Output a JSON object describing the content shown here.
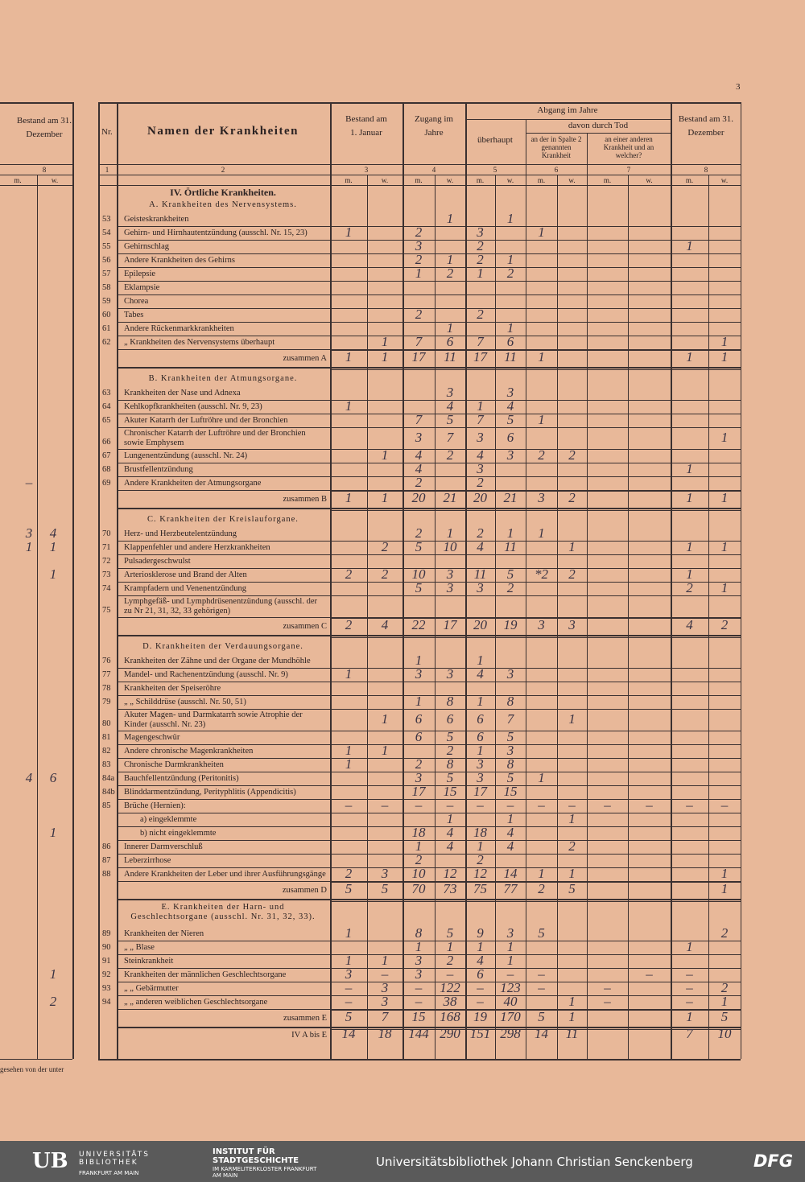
{
  "page_number": "3",
  "left_fragment": {
    "header": "Bestand am 31. Dezember",
    "col_number": "8",
    "footnote": "gesehen von der unter"
  },
  "header": {
    "nr": "Nr.",
    "name": "Namen der Krankheiten",
    "bestand_jan": "Bestand am 1. Januar",
    "zugang": "Zugang im Jahre",
    "abgang": "Abgang im Jahre",
    "ueberhaupt": "überhaupt",
    "davon": "davon durch Tod",
    "col6": "an der in Spalte 2 genannten Krankheit",
    "col7": "an einer anderen Krankheit und an welcher?",
    "bestand_dez": "Bestand am 31. Dezember",
    "col_numbers": [
      "1",
      "2",
      "3",
      "4",
      "5",
      "6",
      "7",
      "8"
    ],
    "sex": [
      "m.",
      "w."
    ]
  },
  "part_title": "IV. Örtliche Krankheiten.",
  "sections": [
    {
      "heading": "A. Krankheiten des Nervensystems.",
      "rows": [
        {
          "nr": "53",
          "name": "Geisteskrankheiten",
          "cells": [
            null,
            null,
            null,
            1,
            null,
            1,
            null,
            null,
            null,
            null,
            null,
            null
          ]
        },
        {
          "nr": "54",
          "name": "Gehirn- und Hirnhautentzündung (ausschl. Nr. 15, 23)",
          "cells": [
            1,
            null,
            2,
            null,
            3,
            null,
            1,
            null,
            null,
            null,
            null,
            null
          ]
        },
        {
          "nr": "55",
          "name": "Gehirnschlag",
          "cells": [
            null,
            null,
            3,
            null,
            2,
            null,
            null,
            null,
            null,
            null,
            1,
            null
          ]
        },
        {
          "nr": "56",
          "name": "Andere Krankheiten des Gehirns",
          "cells": [
            null,
            null,
            2,
            1,
            2,
            1,
            null,
            null,
            null,
            null,
            null,
            null
          ]
        },
        {
          "nr": "57",
          "name": "Epilepsie",
          "cells": [
            null,
            null,
            1,
            2,
            1,
            2,
            null,
            null,
            null,
            null,
            null,
            null
          ]
        },
        {
          "nr": "58",
          "name": "Eklampsie",
          "cells": [
            null,
            null,
            null,
            null,
            null,
            null,
            null,
            null,
            null,
            null,
            null,
            null
          ]
        },
        {
          "nr": "59",
          "name": "Chorea",
          "cells": [
            null,
            null,
            null,
            null,
            null,
            null,
            null,
            null,
            null,
            null,
            null,
            null
          ]
        },
        {
          "nr": "60",
          "name": "Tabes",
          "cells": [
            null,
            null,
            2,
            null,
            2,
            null,
            null,
            null,
            null,
            null,
            null,
            null
          ]
        },
        {
          "nr": "61",
          "name": "Andere Rückenmarkkrankheiten",
          "cells": [
            null,
            null,
            null,
            1,
            null,
            1,
            null,
            null,
            null,
            null,
            null,
            null
          ]
        },
        {
          "nr": "62",
          "name": "„ Krankheiten des Nervensystems überhaupt",
          "cells": [
            null,
            1,
            7,
            6,
            7,
            6,
            null,
            null,
            null,
            null,
            null,
            1
          ]
        }
      ],
      "total": {
        "label": "zusammen A",
        "cells": [
          1,
          1,
          17,
          11,
          17,
          11,
          1,
          null,
          null,
          null,
          1,
          1
        ]
      }
    },
    {
      "heading": "B. Krankheiten der Atmungsorgane.",
      "rows": [
        {
          "nr": "63",
          "name": "Krankheiten der Nase und Adnexa",
          "cells": [
            null,
            null,
            null,
            3,
            null,
            3,
            null,
            null,
            null,
            null,
            null,
            null
          ]
        },
        {
          "nr": "64",
          "name": "Kehlkopfkrankheiten (ausschl. Nr. 9, 23)",
          "cells": [
            1,
            null,
            null,
            4,
            1,
            4,
            null,
            null,
            null,
            null,
            null,
            null
          ]
        },
        {
          "nr": "65",
          "name": "Akuter Katarrh der Luftröhre und der Bronchien",
          "cells": [
            null,
            null,
            7,
            5,
            7,
            5,
            1,
            null,
            null,
            null,
            null,
            null
          ]
        },
        {
          "nr": "66",
          "name": "Chronischer Katarrh der Luftröhre und der Bronchien sowie Emphysem",
          "cells": [
            null,
            null,
            3,
            7,
            3,
            6,
            null,
            null,
            null,
            null,
            null,
            1
          ]
        },
        {
          "nr": "67",
          "name": "Lungenentzündung (ausschl. Nr. 24)",
          "cells": [
            null,
            1,
            4,
            2,
            4,
            3,
            2,
            2,
            null,
            null,
            null,
            null
          ]
        },
        {
          "nr": "68",
          "name": "Brustfellentzündung",
          "cells": [
            null,
            null,
            4,
            null,
            3,
            null,
            null,
            null,
            null,
            null,
            1,
            null
          ]
        },
        {
          "nr": "69",
          "name": "Andere Krankheiten der Atmungsorgane",
          "cells": [
            null,
            null,
            2,
            null,
            2,
            null,
            null,
            null,
            null,
            null,
            null,
            null
          ],
          "prev": [
            "–",
            null
          ]
        }
      ],
      "total": {
        "label": "zusammen B",
        "cells": [
          1,
          1,
          20,
          21,
          20,
          21,
          3,
          2,
          null,
          null,
          1,
          1
        ]
      }
    },
    {
      "heading": "C. Krankheiten der Kreislauforgane.",
      "rows": [
        {
          "nr": "70",
          "name": "Herz- und Herzbeutelentzündung",
          "cells": [
            null,
            null,
            2,
            1,
            2,
            1,
            1,
            null,
            null,
            null,
            null,
            null
          ],
          "prev": [
            3,
            4
          ]
        },
        {
          "nr": "71",
          "name": "Klappenfehler und andere Herzkrankheiten",
          "cells": [
            null,
            2,
            5,
            10,
            4,
            11,
            null,
            1,
            null,
            null,
            1,
            1
          ],
          "prev": [
            1,
            1
          ]
        },
        {
          "nr": "72",
          "name": "Pulsadergeschwulst",
          "cells": [
            null,
            null,
            null,
            null,
            null,
            null,
            null,
            null,
            null,
            null,
            null,
            null
          ]
        },
        {
          "nr": "73",
          "name": "Arteriosklerose und Brand der Alten",
          "cells": [
            2,
            2,
            10,
            3,
            11,
            5,
            "*2",
            2,
            null,
            null,
            1,
            null
          ],
          "prev": [
            null,
            1
          ]
        },
        {
          "nr": "74",
          "name": "Krampfadern und Venenentzündung",
          "cells": [
            null,
            null,
            5,
            3,
            3,
            2,
            null,
            null,
            null,
            null,
            2,
            1
          ]
        },
        {
          "nr": "75",
          "name": "Lymphgefäß- und Lymphdrüsenentzündung (ausschl. der zu Nr 21, 31, 32, 33 gehörigen)",
          "cells": [
            null,
            null,
            null,
            null,
            null,
            null,
            null,
            null,
            null,
            null,
            null,
            null
          ]
        }
      ],
      "total": {
        "label": "zusammen C",
        "cells": [
          2,
          4,
          22,
          17,
          20,
          19,
          3,
          3,
          null,
          null,
          4,
          2
        ]
      }
    },
    {
      "heading": "D. Krankheiten der Verdauungsorgane.",
      "rows": [
        {
          "nr": "76",
          "name": "Krankheiten der Zähne und der Organe der Mundhöhle",
          "cells": [
            null,
            null,
            1,
            null,
            1,
            null,
            null,
            null,
            null,
            null,
            null,
            null
          ]
        },
        {
          "nr": "77",
          "name": "Mandel- und Rachenentzündung (ausschl. Nr. 9)",
          "cells": [
            1,
            null,
            3,
            3,
            4,
            3,
            null,
            null,
            null,
            null,
            null,
            null
          ]
        },
        {
          "nr": "78",
          "name": "Krankheiten der Speiseröhre",
          "cells": [
            null,
            null,
            null,
            null,
            null,
            null,
            null,
            null,
            null,
            null,
            null,
            null
          ]
        },
        {
          "nr": "79",
          "name": "„ „ Schilddrüse (ausschl. Nr. 50, 51)",
          "cells": [
            null,
            null,
            1,
            8,
            1,
            8,
            null,
            null,
            null,
            null,
            null,
            null
          ]
        },
        {
          "nr": "80",
          "name": "Akuter Magen- und Darmkatarrh sowie Atrophie der Kinder (ausschl. Nr. 23)",
          "cells": [
            null,
            1,
            6,
            6,
            6,
            7,
            null,
            1,
            null,
            null,
            null,
            null
          ]
        },
        {
          "nr": "81",
          "name": "Magengeschwür",
          "cells": [
            null,
            null,
            6,
            5,
            6,
            5,
            null,
            null,
            null,
            null,
            null,
            null
          ]
        },
        {
          "nr": "82",
          "name": "Andere chronische Magenkrankheiten",
          "cells": [
            1,
            1,
            null,
            2,
            1,
            3,
            null,
            null,
            null,
            null,
            null,
            null
          ]
        },
        {
          "nr": "83",
          "name": "Chronische Darmkrankheiten",
          "cells": [
            1,
            null,
            2,
            8,
            3,
            8,
            null,
            null,
            null,
            null,
            null,
            null
          ]
        },
        {
          "nr": "84a",
          "name": "Bauchfellentzündung (Peritonitis)",
          "cells": [
            null,
            null,
            3,
            5,
            3,
            5,
            1,
            null,
            null,
            null,
            null,
            null
          ],
          "prev": [
            4,
            6
          ]
        },
        {
          "nr": "84b",
          "name": "Blinddarmentzündung, Perityphlitis (Appendicitis)",
          "cells": [
            null,
            null,
            17,
            15,
            17,
            15,
            null,
            null,
            null,
            null,
            null,
            null
          ]
        },
        {
          "nr": "85",
          "name": "Brüche (Hernien):",
          "cells": [
            "–",
            "–",
            "–",
            "–",
            "–",
            "–",
            "–",
            "–",
            "–",
            "–",
            "–",
            "–"
          ]
        },
        {
          "nr": null,
          "name": "a) eingeklemmte",
          "cells": [
            null,
            null,
            null,
            1,
            null,
            1,
            null,
            1,
            null,
            null,
            null,
            null
          ]
        },
        {
          "nr": null,
          "name": "b) nicht eingeklemmte",
          "cells": [
            null,
            null,
            18,
            4,
            18,
            4,
            null,
            null,
            null,
            null,
            null,
            null
          ],
          "prev": [
            null,
            1
          ]
        },
        {
          "nr": "86",
          "name": "Innerer Darmverschluß",
          "cells": [
            null,
            null,
            1,
            4,
            1,
            4,
            null,
            2,
            null,
            null,
            null,
            null
          ]
        },
        {
          "nr": "87",
          "name": "Leberzirrhose",
          "cells": [
            null,
            null,
            2,
            null,
            2,
            null,
            null,
            null,
            null,
            null,
            null,
            null
          ]
        },
        {
          "nr": "88",
          "name": "Andere Krankheiten der Leber und ihrer Ausführungsgänge",
          "cells": [
            2,
            3,
            10,
            12,
            12,
            14,
            1,
            1,
            null,
            null,
            null,
            1
          ]
        }
      ],
      "total": {
        "label": "zusammen D",
        "cells": [
          5,
          5,
          70,
          73,
          75,
          77,
          2,
          5,
          null,
          null,
          null,
          1
        ]
      }
    },
    {
      "heading": "E. Krankheiten der Harn- und Geschlechtsorgane (ausschl. Nr. 31, 32, 33).",
      "rows": [
        {
          "nr": "89",
          "name": "Krankheiten der Nieren",
          "cells": [
            1,
            null,
            8,
            5,
            9,
            3,
            5,
            null,
            null,
            null,
            null,
            2
          ]
        },
        {
          "nr": "90",
          "name": "„ „ Blase",
          "cells": [
            null,
            null,
            1,
            1,
            1,
            1,
            null,
            null,
            null,
            null,
            1,
            null
          ]
        },
        {
          "nr": "91",
          "name": "Steinkrankheit",
          "cells": [
            1,
            1,
            3,
            2,
            4,
            1,
            null,
            null,
            null,
            null,
            null,
            null
          ]
        },
        {
          "nr": "92",
          "name": "Krankheiten der männlichen Geschlechtsorgane",
          "cells": [
            3,
            "–",
            3,
            "–",
            6,
            "–",
            "–",
            null,
            null,
            "–",
            "–",
            null
          ],
          "prev": [
            null,
            1
          ]
        },
        {
          "nr": "93",
          "name": "„ „ Gebärmutter",
          "cells": [
            "–",
            3,
            "–",
            122,
            "–",
            123,
            "–",
            null,
            "–",
            null,
            "–",
            2
          ]
        },
        {
          "nr": "94",
          "name": "„ „ anderen weiblichen Geschlechtsorgane",
          "cells": [
            "–",
            3,
            "–",
            38,
            "–",
            40,
            null,
            1,
            "–",
            null,
            "–",
            1
          ],
          "prev": [
            null,
            2
          ]
        }
      ],
      "total": {
        "label": "zusammen E",
        "cells": [
          5,
          7,
          15,
          168,
          19,
          170,
          5,
          1,
          null,
          null,
          1,
          5
        ]
      }
    }
  ],
  "grand_total": {
    "label": "IV A bis E",
    "cells": [
      14,
      18,
      144,
      290,
      151,
      298,
      14,
      11,
      null,
      null,
      7,
      10
    ]
  },
  "footer": {
    "ub": "UB",
    "ub_name": "UNIVERSITÄTS BIBLIOTHEK",
    "ub_city": "FRANKFURT AM MAIN",
    "isg_name": "INSTITUT FÜR STADTGESCHICHTE",
    "isg_sub": "IM KARMELITERKLOSTER FRANKFURT AM MAIN",
    "library": "Universitätsbibliothek Johann Christian Senckenberg",
    "dfg": "DFG"
  }
}
